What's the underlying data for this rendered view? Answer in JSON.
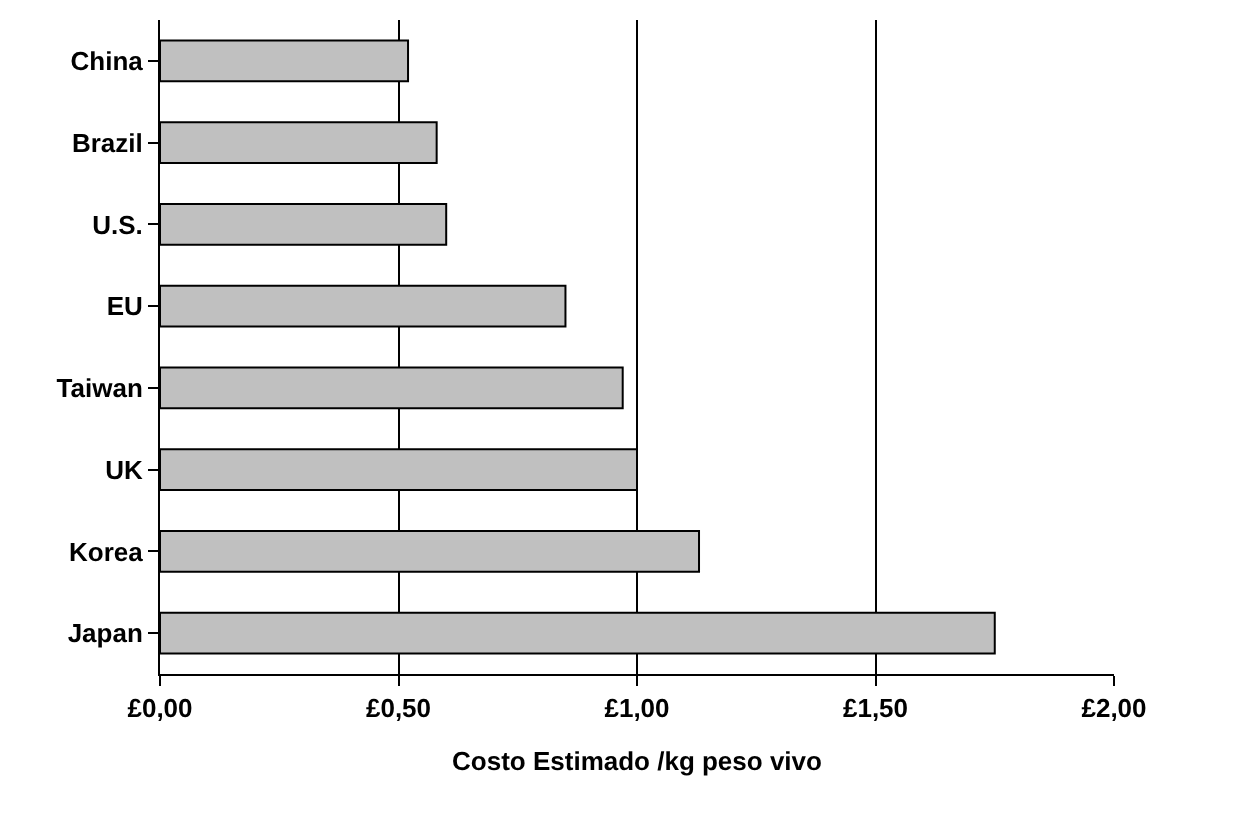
{
  "chart_data": {
    "type": "bar",
    "orientation": "horizontal",
    "xlabel": "Costo Estimado /kg peso vivo",
    "categories": [
      "China",
      "Brazil",
      "U.S.",
      "EU",
      "Taiwan",
      "UK",
      "Korea",
      "Japan"
    ],
    "values": [
      0.52,
      0.58,
      0.6,
      0.85,
      0.97,
      1.0,
      1.13,
      1.75
    ],
    "color": "#c0c0c0",
    "xlim": [
      0,
      2
    ],
    "xticks": [
      {
        "value": 0,
        "label": "£0,00"
      },
      {
        "value": 0.5,
        "label": "£0,50"
      },
      {
        "value": 1,
        "label": "£1,00"
      },
      {
        "value": 1.5,
        "label": "£1,50"
      },
      {
        "value": 2,
        "label": "£2,00"
      }
    ],
    "grid": "x"
  }
}
